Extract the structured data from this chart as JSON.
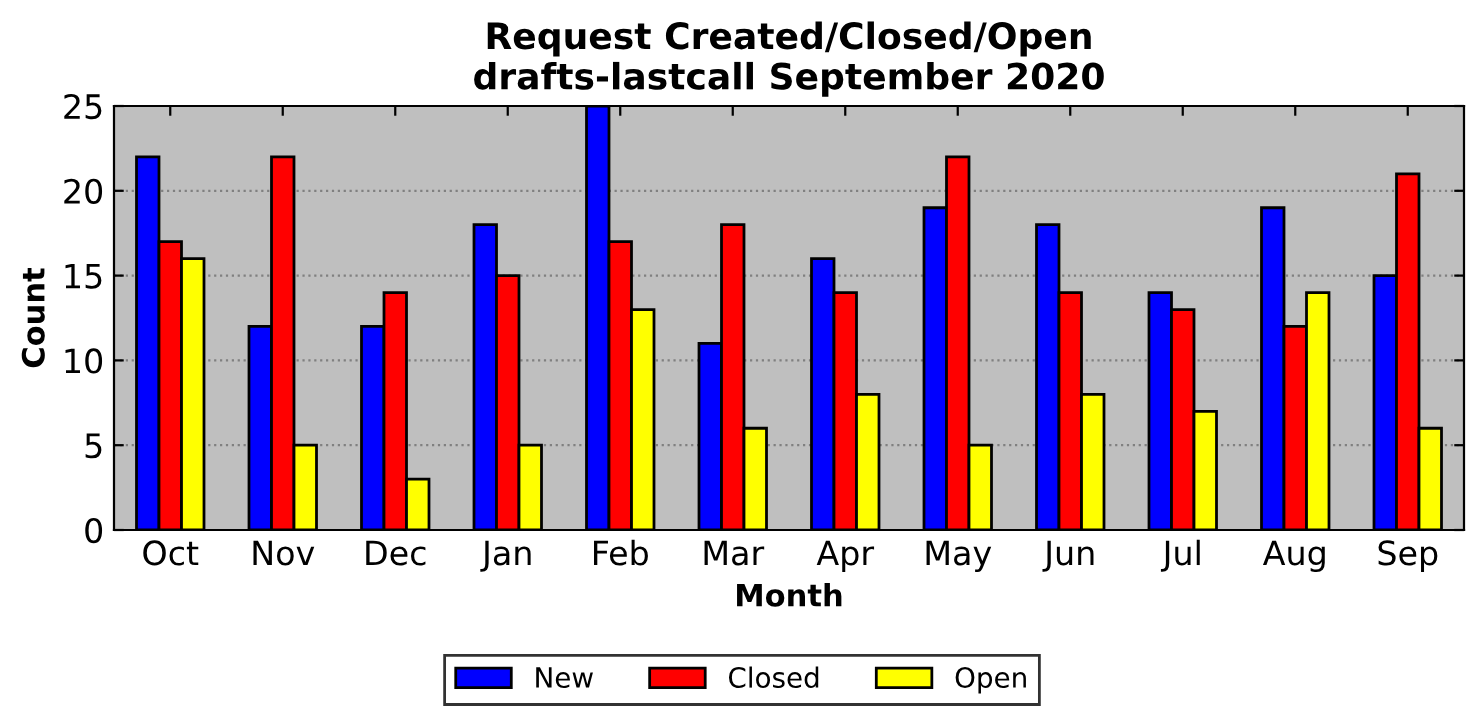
{
  "chart_data": {
    "type": "bar",
    "title": "Request Created/Closed/Open\ndrafts-lastcall September 2020",
    "xlabel": "Month",
    "ylabel": "Count",
    "categories": [
      "Oct",
      "Nov",
      "Dec",
      "Jan",
      "Feb",
      "Mar",
      "Apr",
      "May",
      "Jun",
      "Jul",
      "Aug",
      "Sep"
    ],
    "series": [
      {
        "name": "New",
        "color": "#0000ff",
        "values": [
          22,
          12,
          12,
          18,
          25,
          11,
          16,
          19,
          18,
          14,
          19,
          15
        ]
      },
      {
        "name": "Closed",
        "color": "#ff0000",
        "values": [
          17,
          22,
          14,
          15,
          17,
          18,
          14,
          22,
          14,
          13,
          12,
          21
        ]
      },
      {
        "name": "Open",
        "color": "#ffff00",
        "values": [
          16,
          5,
          3,
          5,
          13,
          6,
          8,
          5,
          8,
          7,
          14,
          6
        ]
      }
    ],
    "ylim": [
      0,
      25
    ],
    "yticks": [
      0,
      5,
      10,
      15,
      20,
      25
    ],
    "grid": "y",
    "legend": "bottom"
  }
}
